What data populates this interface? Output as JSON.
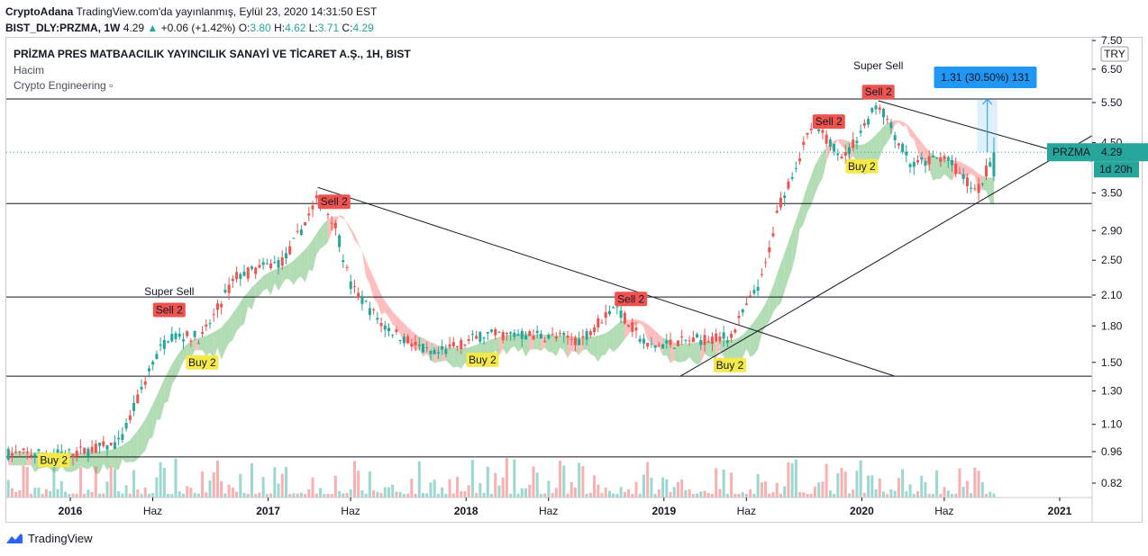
{
  "header": {
    "line1_bold": "CryptoAdana",
    "line1_rest": "TradingView.com'da yayınlanmış, Eylül 23, 2020 14:31:50 EST",
    "symbol": "BIST_DLY:PRZMA, 1W",
    "price": "4.29",
    "change": "+0.06 (+1.42%)",
    "o_label": "O:",
    "o_value": "3.80",
    "h_label": "H:",
    "h_value": "4.62",
    "l_label": "L:",
    "l_value": "3.71",
    "c_label": "C:",
    "c_value": "4.29"
  },
  "legend": {
    "title": "PRİZMA PRES MATBAACILIK YAYINCILIK SANAYİ VE TİCARET A.Ş., 1H, BIST",
    "volume": "Hacim",
    "indicator": "Crypto Engineering"
  },
  "footer": {
    "brand": "TradingView"
  },
  "colors": {
    "up": "#26a69a",
    "down": "#ef5350",
    "cloud_green": "#a5d6a7",
    "cloud_red": "#ffb3b3",
    "buy_label": "#f5e94a",
    "sell_label": "#ef5350",
    "price_tag": "#26a69a",
    "measure": "#2196f3"
  },
  "chart_data": {
    "type": "candlestick",
    "symbol": "PRZMA",
    "y_scale": "log",
    "y_axis": {
      "currency": "TRY",
      "ticks": [
        "7.50",
        "6.50",
        "5.50",
        "4.50",
        "3.50",
        "2.90",
        "2.50",
        "2.10",
        "1.80",
        "1.50",
        "1.30",
        "1.10",
        "0.96",
        "0.82"
      ],
      "range": [
        0.74,
        7.5
      ]
    },
    "x_axis": {
      "ticks": [
        "2016",
        "Haz",
        "2017",
        "Haz",
        "2018",
        "Haz",
        "2019",
        "Haz",
        "2020",
        "Haz",
        "2021"
      ],
      "range": [
        "2015-09",
        "2021-04"
      ]
    },
    "horizontal_levels": [
      5.6,
      3.32,
      2.08,
      1.4,
      0.935
    ],
    "close_approx": [
      [
        "2015-10",
        0.95
      ],
      [
        "2016-01",
        0.95
      ],
      [
        "2016-04",
        1.0
      ],
      [
        "2016-06",
        1.5
      ],
      [
        "2016-07",
        1.72
      ],
      [
        "2016-09",
        1.7
      ],
      [
        "2016-11",
        2.3
      ],
      [
        "2017-02",
        2.5
      ],
      [
        "2017-04",
        3.4
      ],
      [
        "2017-05",
        3.05
      ],
      [
        "2017-06",
        2.2
      ],
      [
        "2017-08",
        1.8
      ],
      [
        "2017-11",
        1.55
      ],
      [
        "2018-02",
        1.72
      ],
      [
        "2018-05",
        1.72
      ],
      [
        "2018-08",
        1.68
      ],
      [
        "2018-10",
        2.0
      ],
      [
        "2018-12",
        1.62
      ],
      [
        "2019-03",
        1.68
      ],
      [
        "2019-05",
        1.7
      ],
      [
        "2019-07",
        2.3
      ],
      [
        "2019-08",
        3.3
      ],
      [
        "2019-10",
        4.9
      ],
      [
        "2019-12",
        4.2
      ],
      [
        "2020-02",
        5.5
      ],
      [
        "2020-04",
        4.0
      ],
      [
        "2020-06",
        4.2
      ],
      [
        "2020-08",
        3.5
      ],
      [
        "2020-09",
        4.29
      ]
    ],
    "trendlines": [
      {
        "from": [
          "2017-04",
          3.6
        ],
        "to": [
          "2020-03",
          1.4
        ]
      },
      {
        "from": [
          "2020-02",
          5.55
        ],
        "to": [
          "2021-04",
          4.0
        ]
      },
      {
        "from": [
          "2019-02",
          1.4
        ],
        "to": [
          "2021-04",
          4.9
        ]
      }
    ],
    "signals": [
      {
        "label": "Buy 2",
        "date": "2015-12",
        "price": 0.92
      },
      {
        "label": "Super Sell",
        "date": "2016-07",
        "price": 2.1
      },
      {
        "label": "Sell 2",
        "date": "2016-07",
        "price": 1.95
      },
      {
        "label": "Buy 2",
        "date": "2016-09",
        "price": 1.5
      },
      {
        "label": "Sell 2",
        "date": "2017-05",
        "price": 3.35
      },
      {
        "label": "Buy 2",
        "date": "2018-02",
        "price": 1.52
      },
      {
        "label": "Sell 2",
        "date": "2018-11",
        "price": 2.06
      },
      {
        "label": "Buy 2",
        "date": "2019-05",
        "price": 1.48
      },
      {
        "label": "Sell 2",
        "date": "2019-11",
        "price": 5.0
      },
      {
        "label": "Buy 2",
        "date": "2020-01",
        "price": 4.0
      },
      {
        "label": "Super Sell",
        "date": "2020-02",
        "price": 6.5
      },
      {
        "label": "Sell 2",
        "date": "2020-02",
        "price": 5.8
      }
    ],
    "measure_label": "1.31 (30.50%) 131",
    "price_tag": {
      "symbol": "PRZMA",
      "value": "4.29"
    },
    "countdown": "1d 20h"
  }
}
